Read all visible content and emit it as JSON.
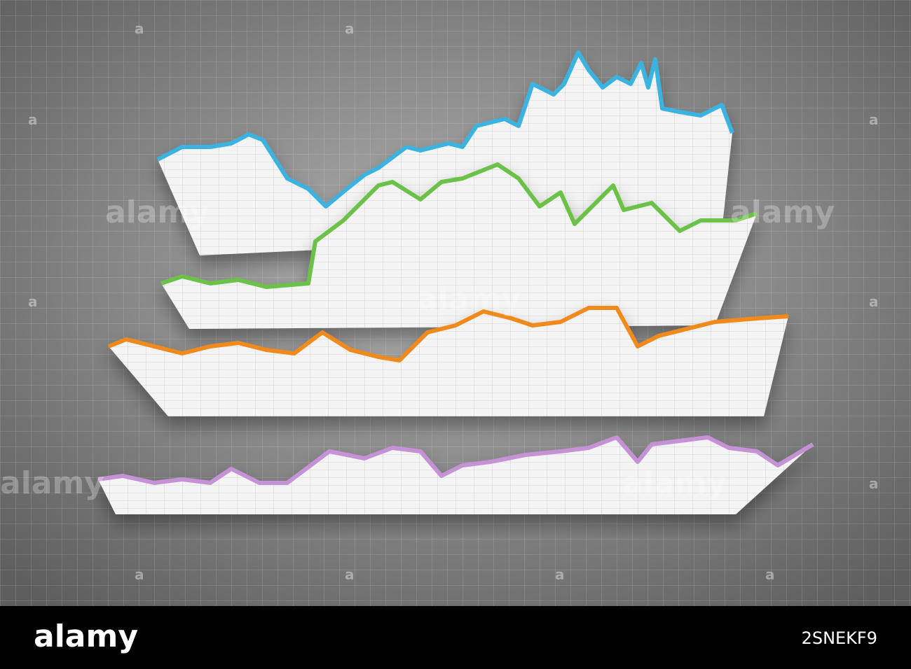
{
  "watermark": "alamy",
  "watermark_small": "a",
  "footer": {
    "logo": "alamy",
    "image_id": "2SNEKF9"
  }
}
